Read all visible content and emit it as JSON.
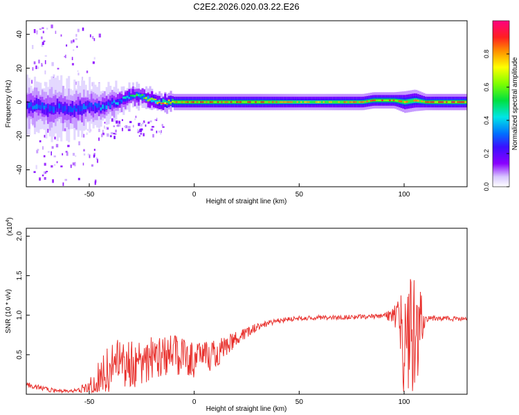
{
  "figure": {
    "title": "C2E2.2026.020.03.22.E26"
  },
  "chart_data": [
    {
      "type": "heatmap",
      "xlabel": "Height of straight line (km)",
      "ylabel": "Frequency (Hz)",
      "xlim": [
        -80,
        130
      ],
      "ylim": [
        -50,
        48
      ],
      "x_ticks": [
        -50,
        0,
        50,
        100
      ],
      "y_ticks": [
        -40,
        -20,
        0,
        20,
        40
      ],
      "colorbar": {
        "label": "Normalized spectral amplitude",
        "range": [
          0,
          1
        ],
        "ticks": [
          0.0,
          0.2,
          0.4,
          0.6,
          0.8
        ],
        "tick_labels": [
          "0.0",
          "0.2",
          "0.4",
          "0.6",
          "0.8"
        ],
        "colormap": "rainbow (white-violet-blue-cyan-green-yellow-red-magenta)"
      },
      "ridge": {
        "x": [
          -80,
          -75,
          -70,
          -65,
          -60,
          -55,
          -50,
          -45,
          -40,
          -35,
          -30,
          -25,
          -20,
          -15,
          -10,
          -5,
          0,
          10,
          20,
          30,
          40,
          50,
          60,
          70,
          80,
          85,
          90,
          95,
          100,
          105,
          110,
          115,
          120,
          130
        ],
        "freq": [
          -3,
          -2,
          -4,
          -3,
          -5,
          -4,
          -2,
          -3,
          -1,
          1,
          4,
          3,
          1,
          0,
          0,
          0,
          0,
          0,
          0,
          0,
          0,
          0,
          0,
          0,
          0,
          1,
          1,
          1,
          0,
          1,
          0,
          0,
          0,
          0
        ],
        "peak_amplitude": [
          0.3,
          0.35,
          0.3,
          0.3,
          0.3,
          0.35,
          0.3,
          0.35,
          0.35,
          0.4,
          0.5,
          0.55,
          0.7,
          0.8,
          0.9,
          0.9,
          0.9,
          0.9,
          0.9,
          0.9,
          0.85,
          0.8,
          0.8,
          0.85,
          0.85,
          0.9,
          0.9,
          0.9,
          0.85,
          0.8,
          0.9,
          0.95,
          0.95,
          0.95
        ],
        "width_hz": [
          9,
          9,
          10,
          10,
          10,
          9,
          8,
          7,
          6,
          5,
          4,
          4,
          3,
          3,
          3,
          3,
          3,
          3,
          3,
          3,
          3,
          3,
          3,
          3,
          3,
          3,
          3,
          3,
          4,
          4,
          3,
          3,
          3,
          3
        ]
      },
      "scatter_region": {
        "x_range": [
          -78,
          -45
        ],
        "freq_range": [
          -48,
          46
        ]
      }
    },
    {
      "type": "line",
      "xlabel": "Height of straight line (km)",
      "ylabel": "SNR (10 * v/v)",
      "y_multiplier_label": "(x10",
      "y_multiplier_exponent": "4",
      "y_multiplier_suffix": ")",
      "xlim": [
        -80,
        130
      ],
      "ylim": [
        0,
        2.1
      ],
      "x_ticks": [
        -50,
        0,
        50,
        100
      ],
      "y_ticks": [
        0.5,
        1.0,
        1.5,
        2.0
      ],
      "y_tick_labels": [
        "0.5",
        "1.0",
        "1.5",
        "2.0"
      ],
      "color": "#e8302c",
      "series": [
        {
          "x": [
            -80,
            -70,
            -60,
            -55,
            -50,
            -45,
            -40,
            -35,
            -30,
            -25,
            -20,
            -15,
            -10,
            -5,
            0,
            10,
            20,
            30,
            40,
            50,
            60,
            70,
            80,
            90,
            95,
            98,
            100,
            102,
            104,
            106,
            108,
            110,
            112,
            120,
            130
          ],
          "y": [
            0.12,
            0.06,
            0.03,
            0.05,
            0.1,
            0.2,
            0.3,
            0.4,
            0.38,
            0.4,
            0.45,
            0.48,
            0.5,
            0.48,
            0.42,
            0.5,
            0.72,
            0.86,
            0.93,
            0.96,
            0.97,
            0.97,
            0.98,
            0.99,
            1.0,
            0.9,
            0.5,
            0.6,
            0.8,
            0.6,
            0.9,
            0.95,
            0.96,
            0.96,
            0.95
          ],
          "noise": [
            0.04,
            0.03,
            0.02,
            0.03,
            0.1,
            0.25,
            0.35,
            0.35,
            0.3,
            0.3,
            0.3,
            0.25,
            0.25,
            0.25,
            0.22,
            0.18,
            0.1,
            0.05,
            0.03,
            0.03,
            0.03,
            0.03,
            0.03,
            0.03,
            0.1,
            0.4,
            0.6,
            0.7,
            0.9,
            0.6,
            0.45,
            0.05,
            0.03,
            0.03,
            0.03
          ]
        }
      ]
    }
  ]
}
